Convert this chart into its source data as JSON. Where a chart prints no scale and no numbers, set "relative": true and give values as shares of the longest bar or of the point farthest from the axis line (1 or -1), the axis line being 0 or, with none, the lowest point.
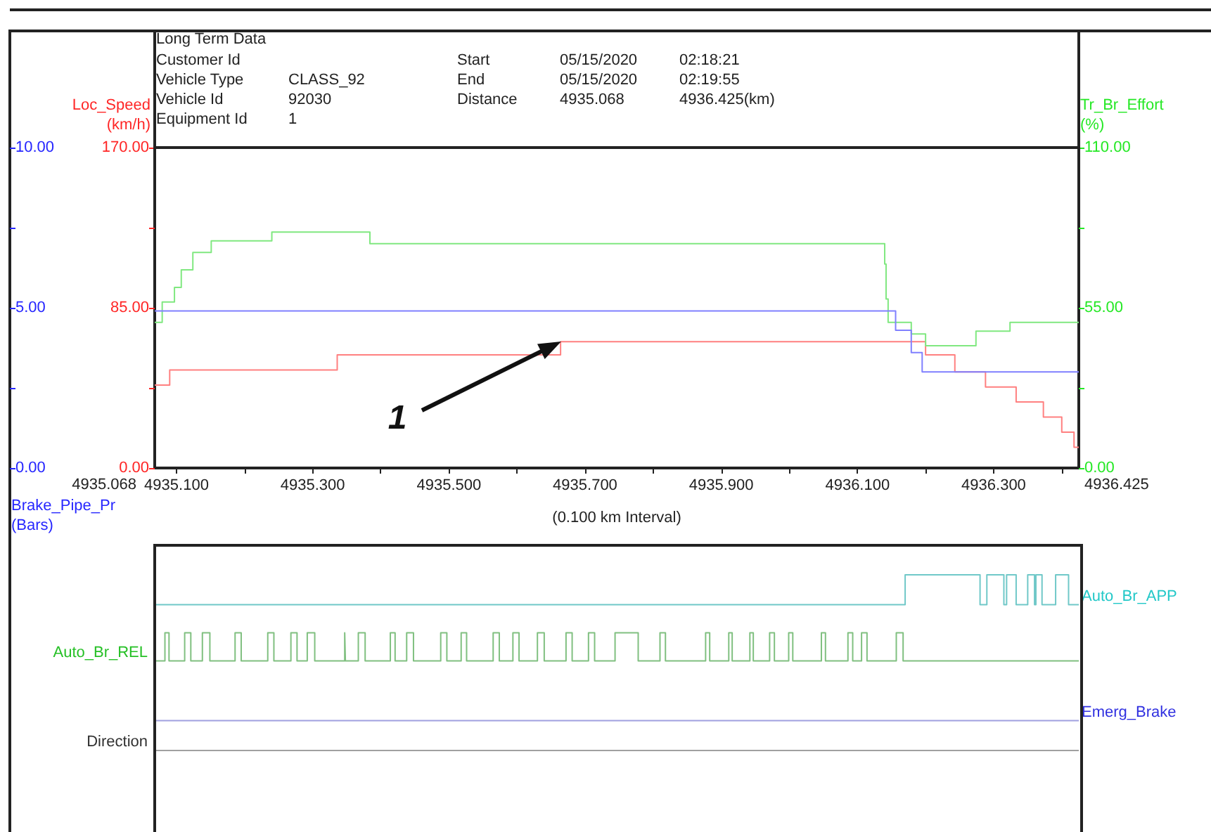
{
  "chart_data": [
    {
      "type": "other",
      "title": "Long Term Data",
      "annotations": [
        "Customer Id\t\tStart\t05/15/2020\t02:18:21",
        "Vehicle Type\tCLASS_92\tEnd\t05/15/2020\t02:19:55",
        "Vehicle Id\t92030\tDistance\t4935.068\t4936.425(km)",
        "Equipment Id\t1"
      ]
    },
    {
      "type": "step",
      "xlabel": "(0.100 km Interval)",
      "ylabel": "Loc_Speed (km/h)",
      "y2label": "Tr_Br_Effort (%)",
      "y3label": "Brake_Pipe_Pr (Bars)",
      "xlim": [
        4935.068,
        4936.425
      ],
      "xticks": [
        {
          "value": 4935.1,
          "label": "4935.100"
        },
        {
          "value": 4935.2,
          "label": null
        },
        {
          "value": 4935.3,
          "label": "4935.300"
        },
        {
          "value": 4935.4,
          "label": null
        },
        {
          "value": 4935.5,
          "label": "4935.500"
        },
        {
          "value": 4935.6,
          "label": null
        },
        {
          "value": 4935.7,
          "label": "4935.700"
        },
        {
          "value": 4935.8,
          "label": null
        },
        {
          "value": 4935.9,
          "label": "4935.900"
        },
        {
          "value": 4936,
          "label": null
        },
        {
          "value": 4936.1,
          "label": "4936.100"
        },
        {
          "value": 4936.2,
          "label": null
        },
        {
          "value": 4936.3,
          "label": "4936.300"
        },
        {
          "value": 4936.4,
          "label": null
        }
      ],
      "ylim": [
        0,
        170
      ],
      "yticks": [
        {
          "value": 0,
          "label": "0.00"
        },
        {
          "value": 42.5,
          "label": null
        },
        {
          "value": 85,
          "label": "85.00"
        },
        {
          "value": 127.5,
          "label": null
        },
        {
          "value": 170,
          "label": "170.00"
        }
      ],
      "y2lim": [
        0,
        110
      ],
      "y2ticks": [
        {
          "value": 0,
          "label": "0.00"
        },
        {
          "value": 27.5,
          "label": null
        },
        {
          "value": 55,
          "label": "55.00"
        },
        {
          "value": 82.5,
          "label": null
        },
        {
          "value": 110,
          "label": "110.00"
        }
      ],
      "y3lim": [
        0,
        10
      ],
      "y3ticks": [
        {
          "value": 0,
          "label": "0.00"
        },
        {
          "value": 2.5,
          "label": null
        },
        {
          "value": 5,
          "label": "5.00"
        },
        {
          "value": 7.5,
          "label": null
        },
        {
          "value": 10,
          "label": "10.00"
        }
      ],
      "series": [
        {
          "color": "#ff8080",
          "x": [
            4935.068,
            4935.09,
            4935.336,
            4935.664,
            4936.2,
            4936.243,
            4936.288,
            4936.333,
            4936.373,
            4936.4,
            4936.418,
            4936.425
          ],
          "values": [
            44,
            52,
            60,
            67,
            60,
            51,
            43,
            35,
            27,
            19,
            11,
            11
          ]
        },
        {
          "color": "#80e880",
          "axis": "y2",
          "x": [
            4935.068,
            4935.079,
            4935.097,
            4935.107,
            4935.124,
            4935.151,
            4935.24,
            4935.384,
            4936.14,
            4936.142,
            4936.145,
            4936.179,
            4936.2,
            4936.274,
            4936.324,
            4936.425
          ],
          "values": [
            50,
            57,
            62,
            68,
            74,
            78,
            81,
            77,
            70,
            58,
            50,
            46,
            42,
            47,
            50,
            50
          ]
        },
        {
          "color": "#8080ff",
          "axis": "y3",
          "x": [
            4935.068,
            4936.156,
            4936.179,
            4936.195,
            4936.425
          ],
          "values": [
            4.9,
            4.3,
            3.6,
            3.0,
            3.0
          ]
        }
      ],
      "annotations": [
        "4935.068",
        "4936.425",
        {
          "text": "1",
          "x": 4935.664,
          "y": 67
        }
      ]
    },
    {
      "type": "step",
      "relative": true,
      "xlim": [
        4935.068,
        4936.425
      ],
      "tick_labels": false,
      "series": [
        {
          "name": "Auto_Br_APP",
          "color": "#70c8c8",
          "x": [
            4935.068,
            4936.17,
            4936.28,
            4936.29,
            4936.315,
            4936.319,
            4936.333,
            4936.35,
            4936.36,
            4936.362,
            4936.371,
            4936.391,
            4936.41,
            4936.425
          ],
          "values": [
            0.83,
            1,
            0.83,
            1,
            0.83,
            1,
            0.83,
            1,
            0.83,
            1,
            0.83,
            1,
            0.83,
            0.83
          ]
        },
        {
          "name": "Auto_Br_REL",
          "color": "#80c080",
          "x": [
            4935.068,
            4935.083,
            4935.089,
            4935.112,
            4935.121,
            4935.138,
            4935.149,
            4935.186,
            4935.195,
            4935.234,
            4935.243,
            4935.268,
            4935.277,
            4935.292,
            4935.303,
            4935.347,
            4935.348,
            4935.367,
            4935.377,
            4935.414,
            4935.421,
            4935.438,
            4935.448,
            4935.488,
            4935.497,
            4935.518,
            4935.526,
            4935.565,
            4935.574,
            4935.594,
            4935.603,
            4935.63,
            4935.64,
            4935.672,
            4935.681,
            4935.705,
            4935.714,
            4935.744,
            4935.778,
            4935.81,
            4935.818,
            4935.877,
            4935.883,
            4935.911,
            4935.916,
            4935.942,
            4935.947,
            4935.971,
            4935.978,
            4935.999,
            4936.005,
            4936.047,
            4936.053,
            4936.086,
            4936.093,
            4936.106,
            4936.114,
            4936.157,
            4936.167,
            4936.425
          ],
          "values": [
            0.51,
            0.67,
            0.51,
            0.67,
            0.51,
            0.67,
            0.51,
            0.67,
            0.51,
            0.67,
            0.51,
            0.67,
            0.51,
            0.67,
            0.51,
            0.67,
            0.51,
            0.67,
            0.51,
            0.67,
            0.51,
            0.67,
            0.51,
            0.67,
            0.51,
            0.67,
            0.51,
            0.67,
            0.51,
            0.67,
            0.51,
            0.67,
            0.51,
            0.67,
            0.51,
            0.67,
            0.51,
            0.67,
            0.51,
            0.67,
            0.51,
            0.67,
            0.51,
            0.67,
            0.51,
            0.67,
            0.51,
            0.67,
            0.51,
            0.67,
            0.51,
            0.67,
            0.51,
            0.67,
            0.51,
            0.67,
            0.51,
            0.67,
            0.51,
            0.51
          ]
        },
        {
          "name": "Emerg_Brake",
          "color": "#a0a0e0",
          "x": [
            4935.068,
            4936.425
          ],
          "values": [
            0.17,
            0.17
          ]
        },
        {
          "name": "Direction",
          "color": "#a0a0a0",
          "x": [
            4935.068,
            4936.425
          ],
          "values": [
            0,
            0
          ]
        }
      ]
    }
  ]
}
